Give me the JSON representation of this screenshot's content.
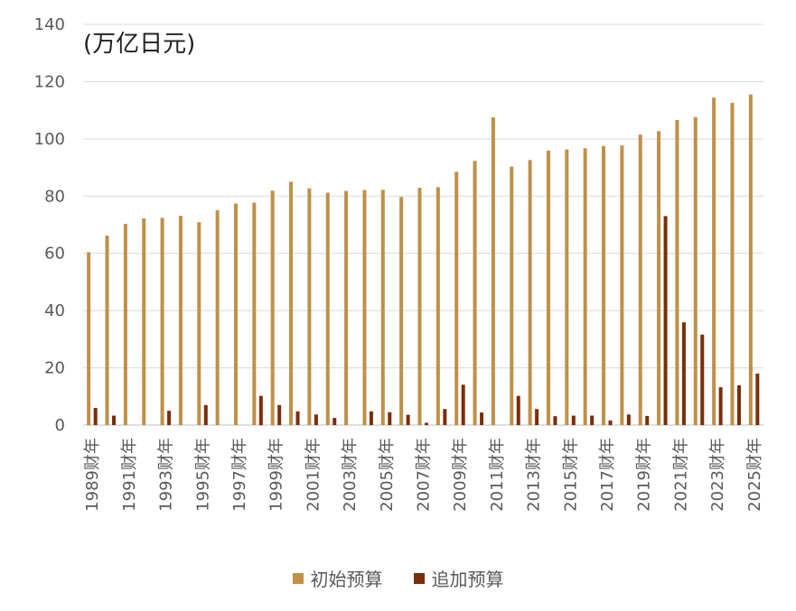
{
  "unit_label": "(万亿日元)",
  "chart_data": {
    "type": "bar",
    "ylim": [
      0,
      140
    ],
    "yticks": [
      0,
      20,
      40,
      60,
      80,
      100,
      120,
      140
    ],
    "grid": true,
    "legend_position": "bottom",
    "categories": [
      "1989财年",
      "1990财年",
      "1991财年",
      "1992财年",
      "1993财年",
      "1994财年",
      "1995财年",
      "1996财年",
      "1997财年",
      "1998财年",
      "1999财年",
      "2000财年",
      "2001财年",
      "2002财年",
      "2003财年",
      "2004财年",
      "2005财年",
      "2006财年",
      "2007财年",
      "2008财年",
      "2009财年",
      "2010财年",
      "2011财年",
      "2012财年",
      "2013财年",
      "2014财年",
      "2015财年",
      "2016财年",
      "2017财年",
      "2018财年",
      "2019财年",
      "2020财年",
      "2021财年",
      "2022财年",
      "2023财年",
      "2024财年",
      "2025财年"
    ],
    "tick_labels": [
      "1989财年",
      "1991财年",
      "1993财年",
      "1995财年",
      "1997财年",
      "1999财年",
      "2001财年",
      "2003财年",
      "2005财年",
      "2007财年",
      "2009财年",
      "2011财年",
      "2013财年",
      "2015财年",
      "2017财年",
      "2019财年",
      "2021财年",
      "2023财年",
      "2025财年"
    ],
    "series": [
      {
        "name": "初始预算",
        "color": "#C09048",
        "values": [
          60.4,
          66.2,
          70.3,
          72.2,
          72.4,
          73.1,
          70.9,
          75.1,
          77.4,
          77.7,
          81.9,
          85.0,
          82.7,
          81.2,
          81.8,
          82.1,
          82.2,
          79.7,
          82.9,
          83.1,
          88.5,
          92.3,
          107.5,
          90.3,
          92.6,
          95.9,
          96.3,
          96.7,
          97.5,
          97.7,
          101.5,
          102.7,
          106.6,
          107.6,
          114.4,
          112.6,
          115.5
        ]
      },
      {
        "name": "追加预算",
        "color": "#7B2D0A",
        "values": [
          6.0,
          3.3,
          0,
          0,
          5.0,
          0,
          7.0,
          0,
          0,
          10.2,
          7.0,
          4.8,
          3.7,
          2.5,
          0,
          4.8,
          4.5,
          3.6,
          0.8,
          5.6,
          14.1,
          4.4,
          0,
          10.2,
          5.6,
          3.1,
          3.3,
          3.3,
          1.6,
          3.7,
          3.2,
          73.0,
          35.9,
          31.6,
          13.2,
          13.9,
          18.0
        ]
      }
    ]
  }
}
